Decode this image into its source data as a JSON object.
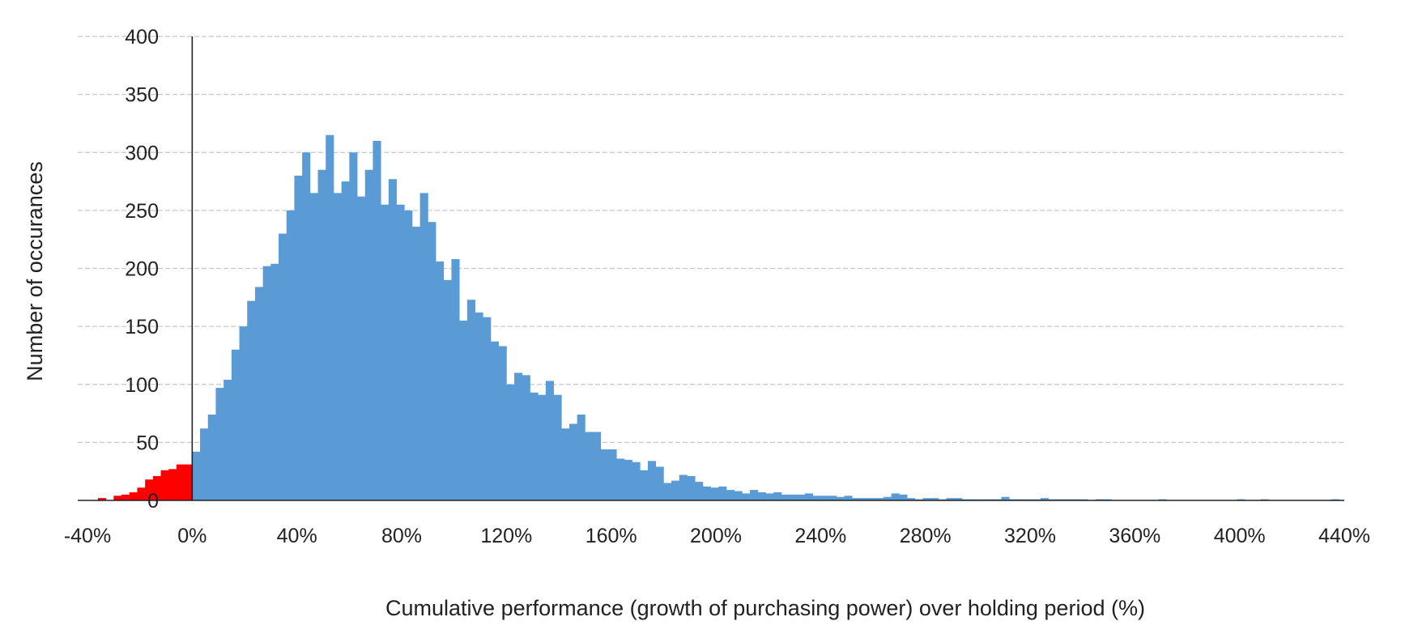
{
  "chart_data": {
    "type": "bar",
    "title": "",
    "xlabel": "Cumulative performance (growth of purchasing power) over holding period (%)",
    "ylabel": "Number of occurances",
    "xlim": [
      -40,
      440
    ],
    "ylim": [
      0,
      400
    ],
    "bin_width": 3,
    "x_tick_values": [
      -40,
      0,
      40,
      80,
      120,
      160,
      200,
      240,
      280,
      320,
      360,
      400,
      440
    ],
    "x_tick_labels": [
      "-40%",
      "0%",
      "40%",
      "80%",
      "120%",
      "160%",
      "200%",
      "240%",
      "280%",
      "320%",
      "360%",
      "400%",
      "440%"
    ],
    "y_ticks": [
      0,
      50,
      100,
      150,
      200,
      250,
      300,
      350,
      400
    ],
    "grid": true,
    "legend": "none",
    "series": [
      {
        "color": "#ff0000",
        "x": [
          -39,
          -36,
          -33,
          -30,
          -27,
          -24,
          -21,
          -18,
          -15,
          -12,
          -9,
          -6,
          -3
        ],
        "values": [
          0,
          2,
          0,
          4,
          5,
          7,
          11,
          18,
          21,
          26,
          27,
          31,
          31
        ]
      },
      {
        "color": "#5b9bd5",
        "x": [
          0,
          3,
          6,
          9,
          12,
          15,
          18,
          21,
          24,
          27,
          30,
          33,
          36,
          39,
          42,
          45,
          48,
          51,
          54,
          57,
          60,
          63,
          66,
          69,
          72,
          75,
          78,
          81,
          84,
          87,
          90,
          93,
          96,
          99,
          102,
          105,
          108,
          111,
          114,
          117,
          120,
          123,
          126,
          129,
          132,
          135,
          138,
          141,
          144,
          147,
          150,
          153,
          156,
          159,
          162,
          165,
          168,
          171,
          174,
          177,
          180,
          183,
          186,
          189,
          192,
          195,
          198,
          201,
          204,
          207,
          210,
          213,
          216,
          219,
          222,
          225,
          228,
          231,
          234,
          237,
          240,
          243,
          246,
          249,
          252,
          255,
          258,
          261,
          264,
          267,
          270,
          273,
          276,
          279,
          282,
          285,
          288,
          291,
          294,
          297,
          300,
          303,
          306,
          309,
          312,
          315,
          318,
          321,
          324,
          327,
          330,
          333,
          336,
          339,
          342,
          345,
          348,
          351,
          354,
          357,
          360,
          363,
          366,
          369,
          372,
          375,
          378,
          381,
          384,
          387,
          390,
          393,
          396,
          399,
          402,
          405,
          408,
          411,
          414,
          417,
          420,
          423,
          426,
          429,
          432,
          435
        ],
        "values": [
          42,
          62,
          74,
          97,
          104,
          130,
          150,
          172,
          184,
          202,
          204,
          230,
          250,
          280,
          300,
          265,
          285,
          315,
          265,
          275,
          300,
          262,
          285,
          310,
          255,
          277,
          255,
          250,
          236,
          265,
          240,
          206,
          190,
          208,
          155,
          173,
          162,
          158,
          137,
          133,
          100,
          110,
          108,
          93,
          91,
          103,
          91,
          62,
          66,
          74,
          59,
          59,
          44,
          44,
          36,
          35,
          33,
          26,
          34,
          29,
          15,
          17,
          22,
          21,
          16,
          12,
          11,
          12,
          9,
          8,
          6,
          9,
          7,
          6,
          7,
          5,
          5,
          5,
          6,
          4,
          4,
          4,
          3,
          4,
          2,
          2,
          2,
          2,
          3,
          6,
          5,
          2,
          1,
          2,
          2,
          1,
          2,
          2,
          1,
          1,
          1,
          1,
          1,
          3,
          1,
          1,
          1,
          1,
          2,
          1,
          1,
          1,
          1,
          1,
          0,
          1,
          1,
          0,
          0,
          0,
          0,
          0,
          0,
          1,
          0,
          0,
          0,
          0,
          0,
          0,
          0,
          0,
          0,
          1,
          0,
          0,
          1,
          0,
          0,
          0,
          0,
          0,
          0,
          0,
          0,
          1
        ]
      }
    ]
  }
}
